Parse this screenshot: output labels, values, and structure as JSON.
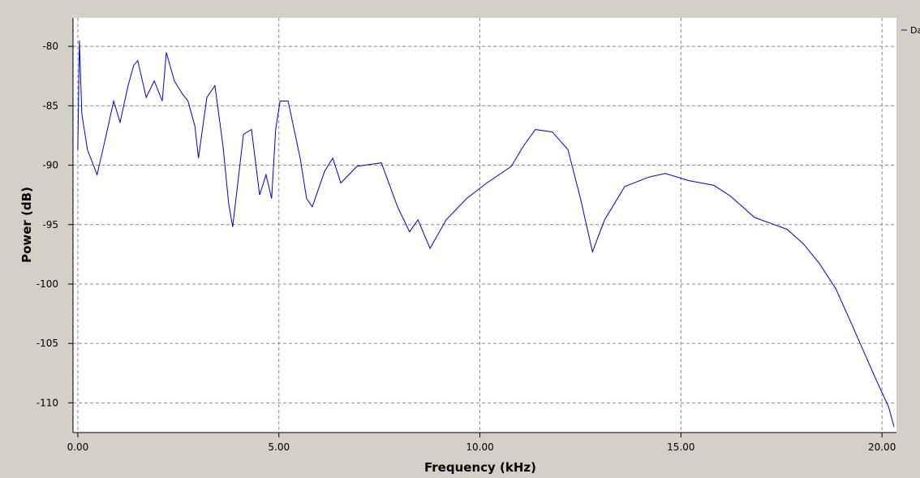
{
  "chart_data": {
    "type": "line",
    "x_label": "Frequency (kHz)",
    "y_label": "Power (dB)",
    "x": [
      0.0,
      0.04,
      0.1,
      0.24,
      0.48,
      0.69,
      0.89,
      1.05,
      1.25,
      1.39,
      1.49,
      1.7,
      1.9,
      2.1,
      2.2,
      2.4,
      2.6,
      2.74,
      2.91,
      3.0,
      3.21,
      3.41,
      3.61,
      3.75,
      3.85,
      4.12,
      4.32,
      4.52,
      4.68,
      4.82,
      4.92,
      5.03,
      5.23,
      5.53,
      5.69,
      5.83,
      6.14,
      6.34,
      6.54,
      6.94,
      7.55,
      7.95,
      8.25,
      8.46,
      8.76,
      9.16,
      9.67,
      10.17,
      10.78,
      11.08,
      11.38,
      11.8,
      12.19,
      12.5,
      12.8,
      13.1,
      13.6,
      14.2,
      14.61,
      15.2,
      15.82,
      16.23,
      16.53,
      16.83,
      17.24,
      17.64,
      18.04,
      18.45,
      18.85,
      19.25,
      19.56,
      19.86,
      20.16,
      20.3
    ],
    "series": [
      {
        "name": "Da",
        "color": "#0000cc",
        "values": [
          -88.7,
          -79.5,
          -85.7,
          -88.7,
          -90.8,
          -87.7,
          -84.6,
          -86.4,
          -83.3,
          -81.6,
          -81.2,
          -84.3,
          -82.9,
          -84.6,
          -80.5,
          -82.9,
          -84.0,
          -84.6,
          -86.7,
          -89.4,
          -84.3,
          -83.3,
          -88.4,
          -93.2,
          -95.2,
          -87.4,
          -87.0,
          -92.5,
          -90.8,
          -92.8,
          -87.0,
          -84.6,
          -84.6,
          -89.4,
          -92.8,
          -93.5,
          -90.5,
          -89.4,
          -91.5,
          -90.1,
          -89.8,
          -93.5,
          -95.6,
          -94.6,
          -97.0,
          -94.6,
          -92.8,
          -91.5,
          -90.1,
          -88.4,
          -87.0,
          -87.2,
          -88.7,
          -92.8,
          -97.3,
          -94.6,
          -91.8,
          -91.0,
          -90.7,
          -91.3,
          -91.7,
          -92.6,
          -93.5,
          -94.4,
          -94.9,
          -95.4,
          -96.6,
          -98.3,
          -100.4,
          -103.4,
          -105.8,
          -108.1,
          -110.3,
          -112.0
        ]
      }
    ],
    "xlim": [
      -0.12,
      20.36
    ],
    "ylim": [
      -112.5,
      -77.6
    ],
    "xticks": [
      {
        "value": 0,
        "label": "0.00"
      },
      {
        "value": 5,
        "label": "5.00"
      },
      {
        "value": 10,
        "label": "10.00"
      },
      {
        "value": 15,
        "label": "15.00"
      },
      {
        "value": 20,
        "label": "20.00"
      }
    ],
    "yticks": [
      -110,
      -105,
      -100,
      -95,
      -90,
      -85,
      -80
    ],
    "grid": true,
    "legend": "right"
  }
}
